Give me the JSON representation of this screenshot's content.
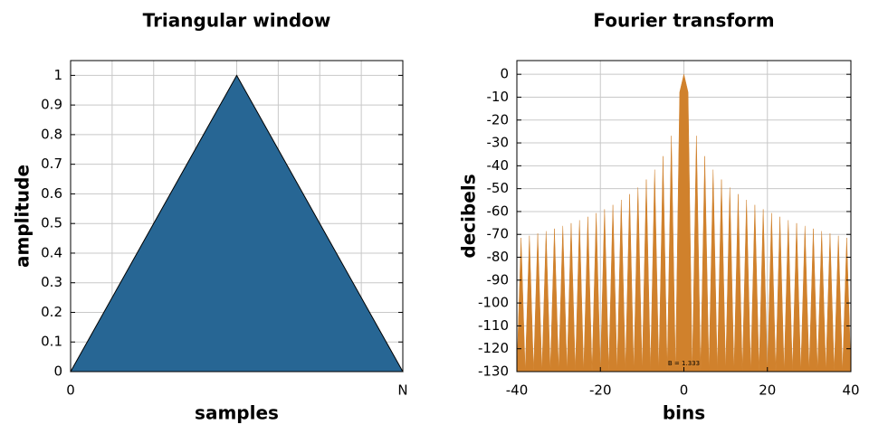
{
  "chart_data": [
    {
      "type": "area",
      "title": "Triangular window",
      "xlabel": "samples",
      "ylabel": "amplitude",
      "x": [
        0,
        0.5,
        1
      ],
      "values": [
        0,
        1,
        0
      ],
      "color": "#276694",
      "edge_color": "#000000",
      "xlim": [
        0,
        1
      ],
      "xticks": [
        0,
        {
          "value": 1,
          "label": "N"
        }
      ],
      "xgrid_divisions": 8,
      "ylim": [
        0,
        1.05
      ],
      "yticks": [
        0,
        0.1,
        0.2,
        0.3,
        0.4,
        0.5,
        0.6,
        0.7,
        0.8,
        0.9,
        1
      ],
      "grid": true
    },
    {
      "type": "area",
      "title": "Fourier transform",
      "xlabel": "bins",
      "ylabel": "decibels",
      "annotation": "B = 1.333",
      "x": [
        -40,
        -39,
        -38,
        -37,
        -36,
        -35,
        -34,
        -33,
        -32,
        -31,
        -30,
        -29,
        -28,
        -27,
        -26,
        -25,
        -24,
        -23,
        -22,
        -21,
        -20,
        -19,
        -18,
        -17,
        -16,
        -15,
        -14,
        -13,
        -12,
        -11,
        -10,
        -9,
        -8,
        -7,
        -6,
        -5,
        -4,
        -3,
        -2,
        -1,
        0,
        1,
        2,
        3,
        4,
        5,
        6,
        7,
        8,
        9,
        10,
        11,
        12,
        13,
        14,
        15,
        16,
        17,
        18,
        19,
        20,
        21,
        22,
        23,
        24,
        25,
        26,
        27,
        28,
        29,
        30,
        31,
        32,
        33,
        34,
        35,
        36,
        37,
        38,
        39,
        40
      ],
      "values": [
        -130,
        -71.5,
        -130,
        -70.6,
        -130,
        -69.6,
        -130,
        -68.6,
        -130,
        -67.5,
        -130,
        -66.3,
        -130,
        -65.1,
        -130,
        -63.8,
        -130,
        -62.3,
        -130,
        -60.7,
        -130,
        -59,
        -130,
        -57.1,
        -130,
        -54.9,
        -130,
        -52.4,
        -130,
        -49.5,
        -130,
        -46,
        -130,
        -41.7,
        -130,
        -35.8,
        -130,
        -26.9,
        -130,
        -7.8,
        0,
        -7.8,
        -130,
        -26.9,
        -130,
        -35.8,
        -130,
        -41.7,
        -130,
        -46,
        -130,
        -49.5,
        -130,
        -52.4,
        -130,
        -54.9,
        -130,
        -57.1,
        -130,
        -59,
        -130,
        -60.7,
        -130,
        -62.3,
        -130,
        -63.8,
        -130,
        -65.1,
        -130,
        -66.3,
        -130,
        -67.5,
        -130,
        -68.6,
        -130,
        -69.6,
        -130,
        -70.6,
        -130,
        -71.5,
        -130
      ],
      "color": "#d0812c",
      "xlim": [
        -40,
        40
      ],
      "xticks": [
        -40,
        -20,
        0,
        20,
        40
      ],
      "ylim": [
        -130,
        6
      ],
      "yticks": [
        0,
        -10,
        -20,
        -30,
        -40,
        -50,
        -60,
        -70,
        -80,
        -90,
        -100,
        -110,
        -120,
        -130
      ],
      "grid": true
    }
  ]
}
